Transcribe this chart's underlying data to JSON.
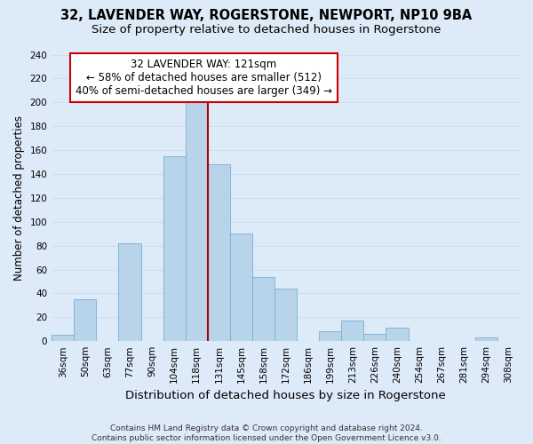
{
  "title": "32, LAVENDER WAY, ROGERSTONE, NEWPORT, NP10 9BA",
  "subtitle": "Size of property relative to detached houses in Rogerstone",
  "xlabel": "Distribution of detached houses by size in Rogerstone",
  "ylabel": "Number of detached properties",
  "bin_labels": [
    "36sqm",
    "50sqm",
    "63sqm",
    "77sqm",
    "90sqm",
    "104sqm",
    "118sqm",
    "131sqm",
    "145sqm",
    "158sqm",
    "172sqm",
    "186sqm",
    "199sqm",
    "213sqm",
    "226sqm",
    "240sqm",
    "254sqm",
    "267sqm",
    "281sqm",
    "294sqm",
    "308sqm"
  ],
  "bar_heights": [
    5,
    35,
    0,
    82,
    0,
    155,
    200,
    148,
    90,
    54,
    44,
    0,
    8,
    17,
    6,
    11,
    0,
    0,
    0,
    3,
    0
  ],
  "bar_color": "#b8d4ea",
  "bar_edge_color": "#7bafd4",
  "vline_x": 6.5,
  "vline_color": "#aa0000",
  "annotation_line1": "32 LAVENDER WAY: 121sqm",
  "annotation_line2": "← 58% of detached houses are smaller (512)",
  "annotation_line3": "40% of semi-detached houses are larger (349) →",
  "annotation_box_color": "#ffffff",
  "annotation_box_edge_color": "#cc0000",
  "ylim": [
    0,
    240
  ],
  "yticks": [
    0,
    20,
    40,
    60,
    80,
    100,
    120,
    140,
    160,
    180,
    200,
    220,
    240
  ],
  "grid_color": "#d0dff0",
  "bg_color": "#ddeaf7",
  "footer": "Contains HM Land Registry data © Crown copyright and database right 2024.\nContains public sector information licensed under the Open Government Licence v3.0.",
  "title_fontsize": 10.5,
  "subtitle_fontsize": 9.5,
  "xlabel_fontsize": 9.5,
  "ylabel_fontsize": 8.5,
  "tick_fontsize": 7.5,
  "annotation_fontsize": 8.5,
  "footer_fontsize": 6.5
}
